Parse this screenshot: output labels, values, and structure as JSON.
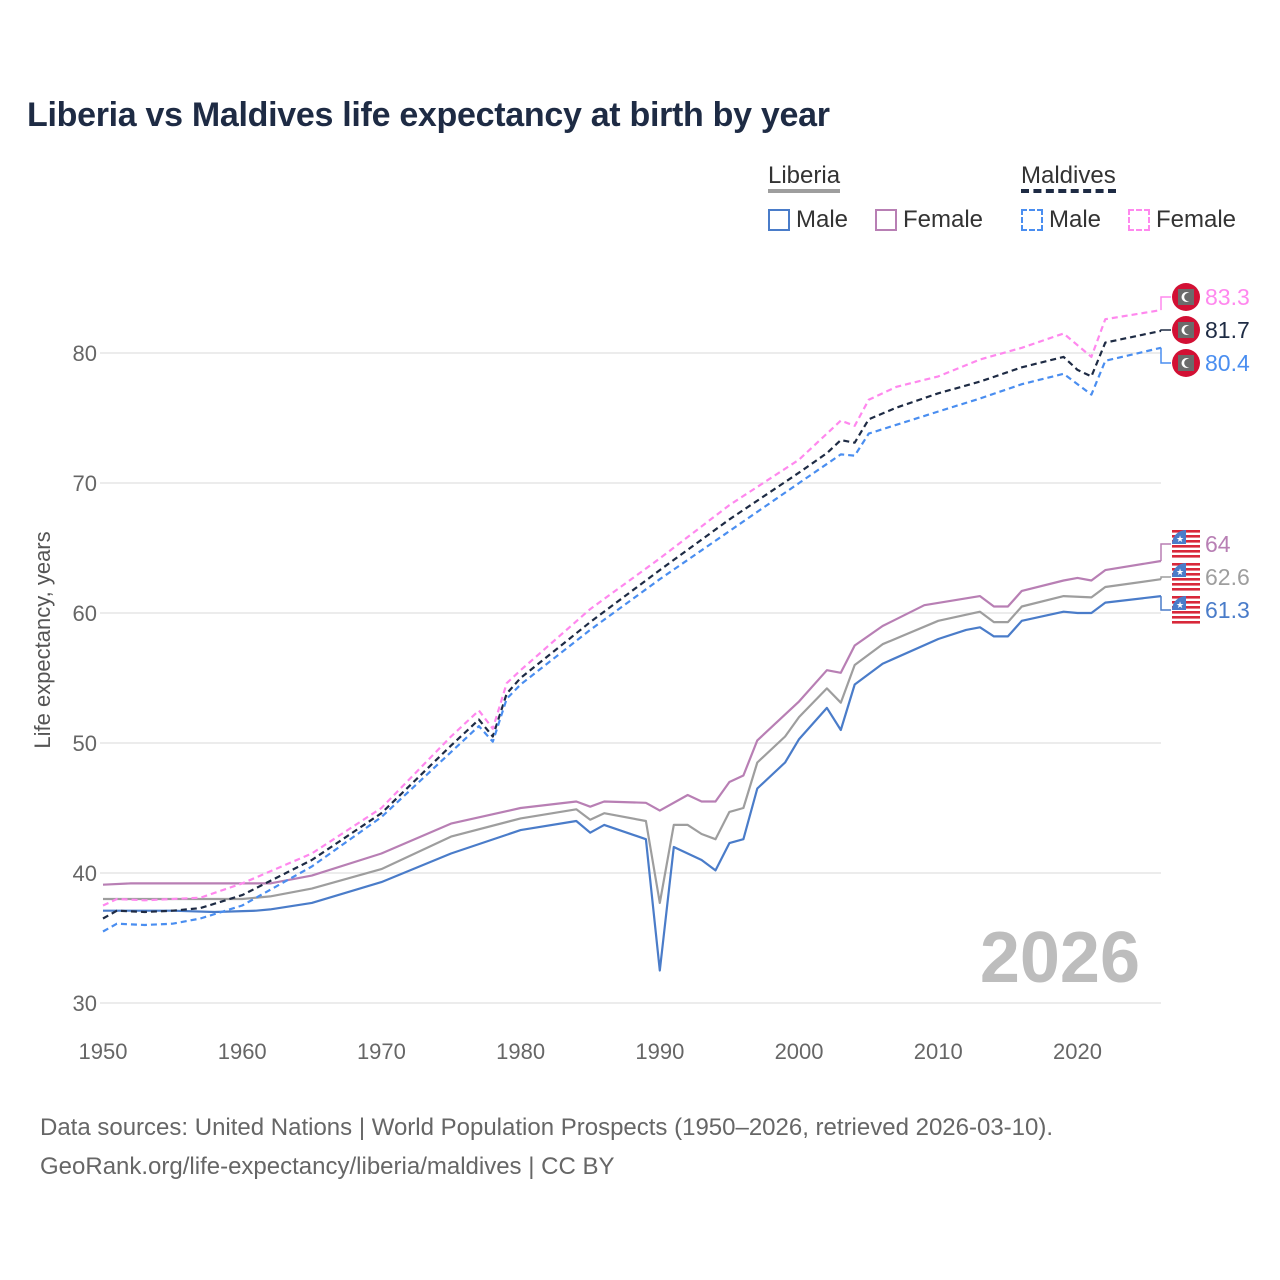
{
  "title": "Liberia vs Maldives life expectancy at birth by year",
  "legend": {
    "groups": [
      {
        "name": "Liberia",
        "items": [
          "Male",
          "Female"
        ]
      },
      {
        "name": "Maldives",
        "items": [
          "Male",
          "Female"
        ]
      }
    ]
  },
  "year_watermark": "2026",
  "source_line1": "Data sources: United Nations | World Population Prospects (1950–2026, retrieved 2026-03-10).",
  "source_line2": "GeoRank.org/life-expectancy/liberia/maldives | CC BY",
  "chart_data": {
    "type": "line",
    "title": "Liberia vs Maldives life expectancy at birth by year",
    "xlabel": "",
    "ylabel": "Life expectancy, years",
    "xlim": [
      1950,
      2026
    ],
    "ylim": [
      30,
      85
    ],
    "x_ticks": [
      "1950",
      "1960",
      "1970",
      "1980",
      "1990",
      "2000",
      "2010",
      "2020"
    ],
    "y_ticks": [
      "30",
      "40",
      "50",
      "60",
      "70",
      "80"
    ],
    "grid": true,
    "legend_position": "top-right",
    "series": [
      {
        "name": "Liberia Female",
        "country": "Liberia",
        "color": "#b87fb4",
        "dashed": false,
        "end_label": "64",
        "points": [
          [
            1950,
            39.1
          ],
          [
            1952,
            39.2
          ],
          [
            1962,
            39.2
          ],
          [
            1965,
            39.8
          ],
          [
            1970,
            41.5
          ],
          [
            1975,
            43.8
          ],
          [
            1980,
            45.0
          ],
          [
            1984,
            45.5
          ],
          [
            1985,
            45.1
          ],
          [
            1986,
            45.5
          ],
          [
            1989,
            45.4
          ],
          [
            1990,
            44.8
          ],
          [
            1992,
            46.0
          ],
          [
            1993,
            45.5
          ],
          [
            1994,
            45.5
          ],
          [
            1995,
            47.0
          ],
          [
            1996,
            47.5
          ],
          [
            1997,
            50.2
          ],
          [
            2000,
            53.2
          ],
          [
            2002,
            55.6
          ],
          [
            2003,
            55.4
          ],
          [
            2004,
            57.5
          ],
          [
            2006,
            59.0
          ],
          [
            2009,
            60.6
          ],
          [
            2013,
            61.3
          ],
          [
            2014,
            60.5
          ],
          [
            2015,
            60.5
          ],
          [
            2016,
            61.7
          ],
          [
            2019,
            62.5
          ],
          [
            2020,
            62.7
          ],
          [
            2021,
            62.5
          ],
          [
            2022,
            63.3
          ],
          [
            2026,
            64.0
          ]
        ]
      },
      {
        "name": "Liberia",
        "country": "Liberia",
        "color": "#9e9e9e",
        "dashed": false,
        "end_label": "62.6",
        "points": [
          [
            1950,
            38.0
          ],
          [
            1960,
            38.0
          ],
          [
            1962,
            38.2
          ],
          [
            1965,
            38.8
          ],
          [
            1970,
            40.3
          ],
          [
            1975,
            42.8
          ],
          [
            1980,
            44.2
          ],
          [
            1984,
            44.9
          ],
          [
            1985,
            44.1
          ],
          [
            1986,
            44.6
          ],
          [
            1989,
            44.0
          ],
          [
            1990,
            37.7
          ],
          [
            1991,
            43.7
          ],
          [
            1992,
            43.7
          ],
          [
            1993,
            43.0
          ],
          [
            1994,
            42.6
          ],
          [
            1995,
            44.7
          ],
          [
            1996,
            45.0
          ],
          [
            1997,
            48.5
          ],
          [
            1999,
            50.5
          ],
          [
            2000,
            52.0
          ],
          [
            2002,
            54.2
          ],
          [
            2003,
            53.1
          ],
          [
            2004,
            56.0
          ],
          [
            2006,
            57.6
          ],
          [
            2010,
            59.4
          ],
          [
            2013,
            60.1
          ],
          [
            2014,
            59.3
          ],
          [
            2015,
            59.3
          ],
          [
            2016,
            60.5
          ],
          [
            2019,
            61.3
          ],
          [
            2021,
            61.2
          ],
          [
            2022,
            62.0
          ],
          [
            2026,
            62.6
          ]
        ]
      },
      {
        "name": "Liberia Male",
        "country": "Liberia",
        "color": "#4a7cc9",
        "dashed": false,
        "end_label": "61.3",
        "points": [
          [
            1950,
            37.1
          ],
          [
            1955,
            37.1
          ],
          [
            1958,
            37.0
          ],
          [
            1961,
            37.1
          ],
          [
            1962,
            37.2
          ],
          [
            1965,
            37.7
          ],
          [
            1970,
            39.3
          ],
          [
            1975,
            41.5
          ],
          [
            1980,
            43.3
          ],
          [
            1984,
            44.0
          ],
          [
            1985,
            43.1
          ],
          [
            1986,
            43.7
          ],
          [
            1989,
            42.6
          ],
          [
            1990,
            32.5
          ],
          [
            1991,
            42.0
          ],
          [
            1993,
            41.0
          ],
          [
            1994,
            40.2
          ],
          [
            1995,
            42.3
          ],
          [
            1996,
            42.6
          ],
          [
            1997,
            46.5
          ],
          [
            1999,
            48.5
          ],
          [
            2000,
            50.3
          ],
          [
            2002,
            52.7
          ],
          [
            2003,
            51.0
          ],
          [
            2004,
            54.5
          ],
          [
            2006,
            56.1
          ],
          [
            2010,
            58.0
          ],
          [
            2012,
            58.7
          ],
          [
            2013,
            58.9
          ],
          [
            2014,
            58.2
          ],
          [
            2015,
            58.2
          ],
          [
            2016,
            59.4
          ],
          [
            2019,
            60.1
          ],
          [
            2020,
            60.0
          ],
          [
            2021,
            60.0
          ],
          [
            2022,
            60.8
          ],
          [
            2026,
            61.3
          ]
        ]
      },
      {
        "name": "Maldives Female",
        "country": "Maldives",
        "color": "#ff88ee",
        "dashed": true,
        "end_label": "83.3",
        "points": [
          [
            1950,
            37.5
          ],
          [
            1951,
            38.0
          ],
          [
            1953,
            37.9
          ],
          [
            1957,
            38.1
          ],
          [
            1960,
            39.2
          ],
          [
            1965,
            41.5
          ],
          [
            1970,
            45.0
          ],
          [
            1975,
            50.5
          ],
          [
            1977,
            52.5
          ],
          [
            1978,
            51.1
          ],
          [
            1979,
            54.6
          ],
          [
            1980,
            55.6
          ],
          [
            1985,
            60.3
          ],
          [
            1990,
            64.2
          ],
          [
            1995,
            68.3
          ],
          [
            2000,
            71.8
          ],
          [
            2003,
            74.8
          ],
          [
            2004,
            74.4
          ],
          [
            2005,
            76.4
          ],
          [
            2007,
            77.4
          ],
          [
            2010,
            78.2
          ],
          [
            2013,
            79.5
          ],
          [
            2016,
            80.4
          ],
          [
            2019,
            81.5
          ],
          [
            2021,
            79.7
          ],
          [
            2022,
            82.6
          ],
          [
            2026,
            83.3
          ]
        ]
      },
      {
        "name": "Maldives",
        "country": "Maldives",
        "color": "#1e2b44",
        "dashed": true,
        "end_label": "81.7",
        "points": [
          [
            1950,
            36.5
          ],
          [
            1951,
            37.1
          ],
          [
            1953,
            37.0
          ],
          [
            1955,
            37.1
          ],
          [
            1957,
            37.3
          ],
          [
            1960,
            38.3
          ],
          [
            1965,
            41.0
          ],
          [
            1970,
            44.6
          ],
          [
            1975,
            49.8
          ],
          [
            1977,
            51.8
          ],
          [
            1978,
            50.5
          ],
          [
            1979,
            53.8
          ],
          [
            1980,
            55.0
          ],
          [
            1985,
            59.3
          ],
          [
            1990,
            63.3
          ],
          [
            1995,
            67.2
          ],
          [
            2000,
            70.8
          ],
          [
            2002,
            72.3
          ],
          [
            2003,
            73.3
          ],
          [
            2004,
            73.1
          ],
          [
            2005,
            74.9
          ],
          [
            2007,
            75.8
          ],
          [
            2010,
            76.9
          ],
          [
            2013,
            77.8
          ],
          [
            2016,
            78.9
          ],
          [
            2019,
            79.7
          ],
          [
            2020,
            78.7
          ],
          [
            2021,
            78.2
          ],
          [
            2022,
            80.8
          ],
          [
            2026,
            81.7
          ]
        ]
      },
      {
        "name": "Maldives Male",
        "country": "Maldives",
        "color": "#4a8ef0",
        "dashed": true,
        "end_label": "80.4",
        "points": [
          [
            1950,
            35.5
          ],
          [
            1951,
            36.1
          ],
          [
            1953,
            36.0
          ],
          [
            1955,
            36.1
          ],
          [
            1957,
            36.5
          ],
          [
            1960,
            37.5
          ],
          [
            1965,
            40.5
          ],
          [
            1970,
            44.3
          ],
          [
            1975,
            49.3
          ],
          [
            1977,
            51.3
          ],
          [
            1978,
            50.1
          ],
          [
            1979,
            53.4
          ],
          [
            1980,
            54.5
          ],
          [
            1985,
            58.7
          ],
          [
            1990,
            62.6
          ],
          [
            1995,
            66.3
          ],
          [
            2000,
            70.0
          ],
          [
            2003,
            72.2
          ],
          [
            2004,
            72.1
          ],
          [
            2005,
            73.8
          ],
          [
            2010,
            75.5
          ],
          [
            2013,
            76.5
          ],
          [
            2016,
            77.6
          ],
          [
            2019,
            78.4
          ],
          [
            2021,
            76.8
          ],
          [
            2022,
            79.4
          ],
          [
            2026,
            80.4
          ]
        ]
      }
    ]
  }
}
